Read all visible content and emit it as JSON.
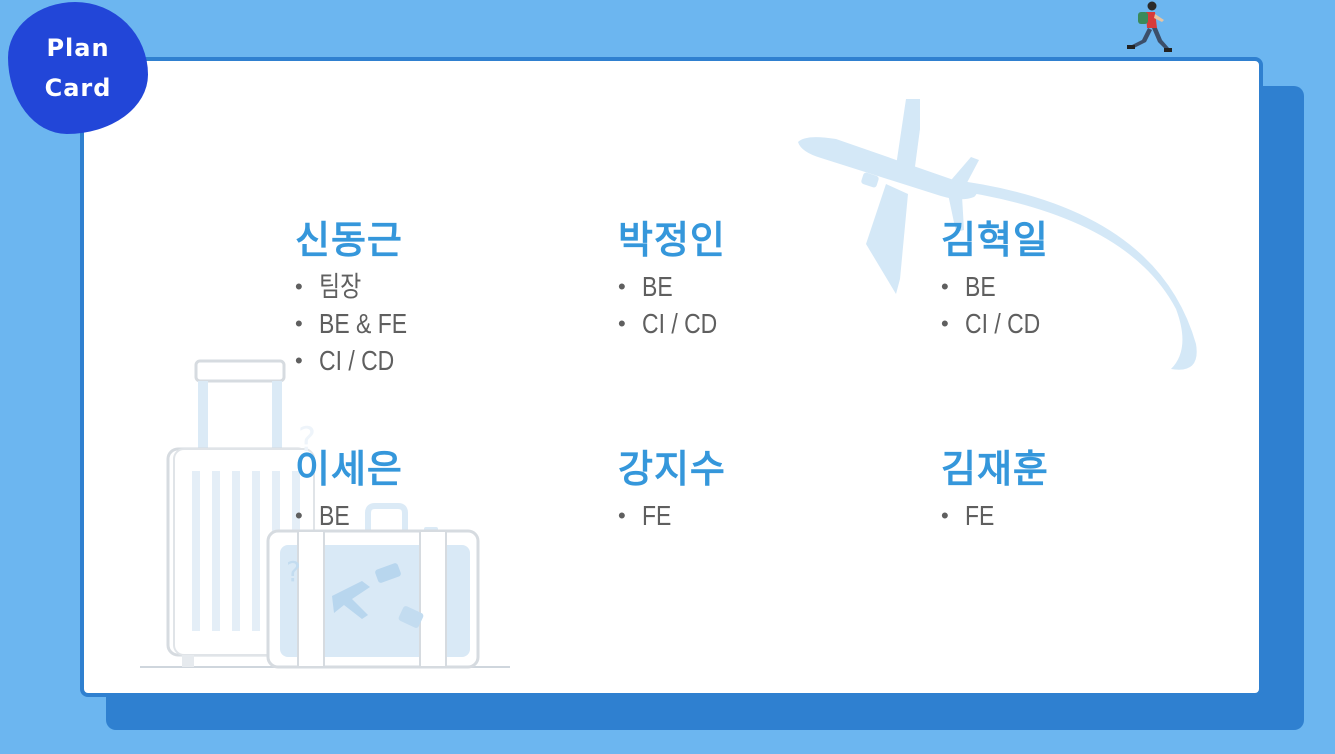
{
  "badge": {
    "line1": "Plan",
    "line2": "Card"
  },
  "members": [
    {
      "name": "신동근",
      "roles": [
        "팀장",
        "BE & FE",
        "CI / CD"
      ]
    },
    {
      "name": "박정인",
      "roles": [
        "BE",
        "CI / CD"
      ]
    },
    {
      "name": "김혁일",
      "roles": [
        "BE",
        "CI / CD"
      ]
    },
    {
      "name": "이세은",
      "roles": [
        "BE"
      ]
    },
    {
      "name": "강지수",
      "roles": [
        "FE"
      ]
    },
    {
      "name": "김재훈",
      "roles": [
        "FE"
      ]
    }
  ],
  "bullet": "•",
  "colors": {
    "background": "#6cb6f0",
    "card_border": "#2f80d0",
    "badge": "#2246d8",
    "name": "#3597db",
    "role": "#5f5f5f",
    "illustration": "#d4e8f7"
  },
  "icons": [
    "runner-icon",
    "airplane-icon",
    "luggage-icon"
  ]
}
